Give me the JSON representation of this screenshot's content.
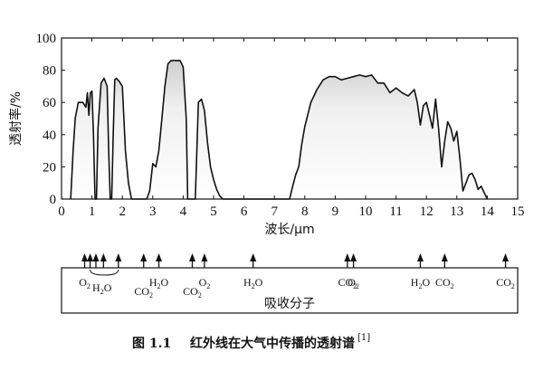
{
  "chart_data": {
    "type": "area",
    "xlabel": "波长/μm",
    "ylabel": "透射率/%",
    "xlim": [
      0,
      15
    ],
    "ylim": [
      0,
      100
    ],
    "xticks": [
      "0",
      "1",
      "2",
      "3",
      "4",
      "5",
      "6",
      "7",
      "8",
      "9",
      "10",
      "11",
      "12",
      "13",
      "14",
      "15"
    ],
    "yticks": [
      "0",
      "20",
      "40",
      "60",
      "80",
      "100"
    ],
    "grid": false,
    "series": [
      {
        "x": [
          0.3,
          0.38,
          0.45,
          0.55,
          0.7,
          0.8,
          0.85,
          0.9,
          0.95,
          1.0,
          1.05,
          1.1,
          1.15,
          1.2,
          1.3,
          1.4,
          1.5,
          1.55,
          1.6,
          1.65,
          1.7,
          1.75,
          1.8,
          1.9,
          2.0,
          2.05,
          2.1,
          2.2,
          2.3,
          2.4,
          2.5,
          2.6,
          2.7,
          2.8,
          2.9,
          3.0,
          3.1,
          3.2,
          3.3,
          3.4,
          3.5,
          3.6,
          3.7,
          3.8,
          3.9,
          4.0,
          4.1,
          4.15,
          4.2,
          4.3,
          4.4,
          4.5,
          4.6,
          4.7,
          4.8,
          4.9,
          5.0,
          5.1,
          5.2,
          5.3,
          5.4,
          5.5,
          6.0,
          7.0,
          7.5,
          7.6,
          7.7,
          7.8,
          7.9,
          8.0,
          8.2,
          8.4,
          8.6,
          8.8,
          9.0,
          9.2,
          9.4,
          9.6,
          9.8,
          10.0,
          10.2,
          10.4,
          10.6,
          10.8,
          11.0,
          11.2,
          11.4,
          11.6,
          11.7,
          11.8,
          11.9,
          12.0,
          12.1,
          12.2,
          12.3,
          12.4,
          12.5,
          12.6,
          12.7,
          12.8,
          12.9,
          13.0,
          13.1,
          13.2,
          13.3,
          13.4,
          13.5,
          13.6,
          13.7,
          13.8,
          13.9,
          14.0
        ],
        "values": [
          0,
          30,
          50,
          60,
          60,
          57,
          66,
          52,
          66,
          67,
          40,
          0,
          0,
          44,
          72,
          75,
          70,
          30,
          0,
          0,
          40,
          74,
          75,
          73,
          70,
          50,
          30,
          10,
          0,
          0,
          0,
          0,
          0,
          0,
          5,
          22,
          20,
          30,
          50,
          70,
          84,
          86,
          86,
          86,
          86,
          82,
          50,
          0,
          0,
          0,
          0,
          60,
          62,
          55,
          35,
          20,
          12,
          6,
          2,
          0,
          0,
          0,
          0,
          0,
          0,
          8,
          15,
          20,
          34,
          45,
          60,
          68,
          74,
          76,
          76,
          74,
          75,
          76,
          77,
          76,
          77,
          72,
          72,
          66,
          69,
          66,
          64,
          68,
          60,
          46,
          58,
          60,
          52,
          44,
          62,
          44,
          20,
          36,
          48,
          44,
          36,
          42,
          25,
          5,
          10,
          15,
          16,
          12,
          6,
          8,
          4,
          0
        ]
      }
    ],
    "absorbers": [
      {
        "label": "O2",
        "x": [
          0.76
        ]
      },
      {
        "label": "H2O",
        "x": [
          0.94,
          1.13,
          1.38,
          1.87
        ]
      },
      {
        "label": "CO2",
        "x": [
          2.7
        ]
      },
      {
        "label": "H2O",
        "x": [
          3.2
        ]
      },
      {
        "label": "CO2",
        "x": [
          4.3
        ]
      },
      {
        "label": "O2",
        "x": [
          4.7
        ]
      },
      {
        "label": "H2O",
        "x": [
          6.3
        ]
      },
      {
        "label": "CO2",
        "x": [
          9.4
        ]
      },
      {
        "label": "O2",
        "x": [
          9.6
        ]
      },
      {
        "label": "H2O",
        "x": [
          11.8
        ]
      },
      {
        "label": "CO2",
        "x": [
          12.6
        ]
      },
      {
        "label": "CO2",
        "x": [
          14.6
        ]
      }
    ],
    "absorbers_title": "吸收分子"
  },
  "caption": {
    "number": "图 1.1",
    "text": "红外线在大气中传播的透射谱",
    "ref": "[1]"
  }
}
